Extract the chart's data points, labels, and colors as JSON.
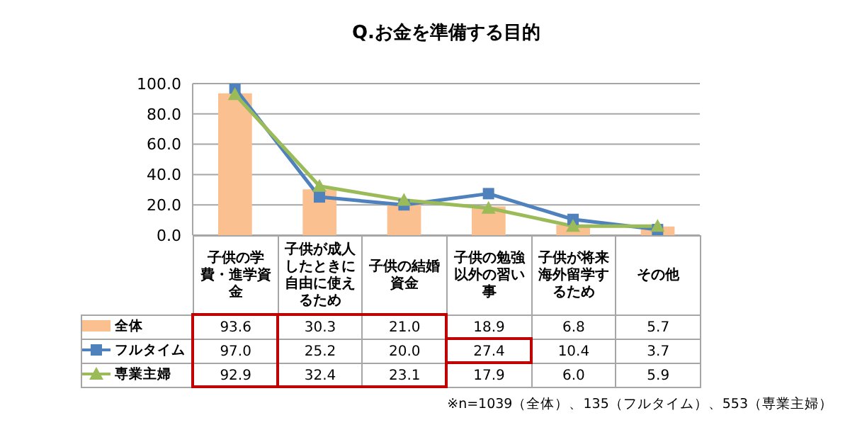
{
  "chart_data": {
    "type": "bar",
    "title": "Q.お金を準備する目的",
    "categories": [
      "子供の学費・進学資金",
      "子供が成人したときに自由に使えるため",
      "子供の結婚資金",
      "子供の勉強以外の習い事",
      "子供が将来海外留学するため",
      "その他"
    ],
    "series": [
      {
        "name": "全体",
        "color": "#fac090",
        "values": [
          93.6,
          30.3,
          21.0,
          18.9,
          6.8,
          5.7
        ],
        "value_labels": [
          "93.6",
          "30.3",
          "21.0",
          "18.9",
          "6.8",
          "5.7"
        ]
      },
      {
        "name": "フルタイム",
        "type": "line",
        "marker": "square",
        "color": "#4f81bd",
        "values": [
          97.0,
          25.2,
          20.0,
          27.4,
          10.4,
          3.7
        ],
        "value_labels": [
          "97.0",
          "25.2",
          "20.0",
          "27.4",
          "10.4",
          "3.7"
        ]
      },
      {
        "name": "専業主婦",
        "type": "line",
        "marker": "triangle",
        "color": "#9bbb59",
        "values": [
          92.9,
          32.4,
          23.1,
          17.9,
          6.0,
          5.9
        ],
        "value_labels": [
          "92.9",
          "32.4",
          "23.1",
          "17.9",
          "6.0",
          "5.9"
        ]
      }
    ],
    "ylim": [
      0,
      100
    ],
    "yticks": [
      {
        "value": 0,
        "label": "0.0"
      },
      {
        "value": 20,
        "label": "20.0"
      },
      {
        "value": 40,
        "label": "40.0"
      },
      {
        "value": 60,
        "label": "60.0"
      },
      {
        "value": 80,
        "label": "80.0"
      },
      {
        "value": 100,
        "label": "100.0"
      }
    ],
    "grid": "y",
    "legend": "bottom",
    "annotations": [
      "※n=1039（全体）、135（フルタイム）、553（専業主婦）"
    ]
  }
}
